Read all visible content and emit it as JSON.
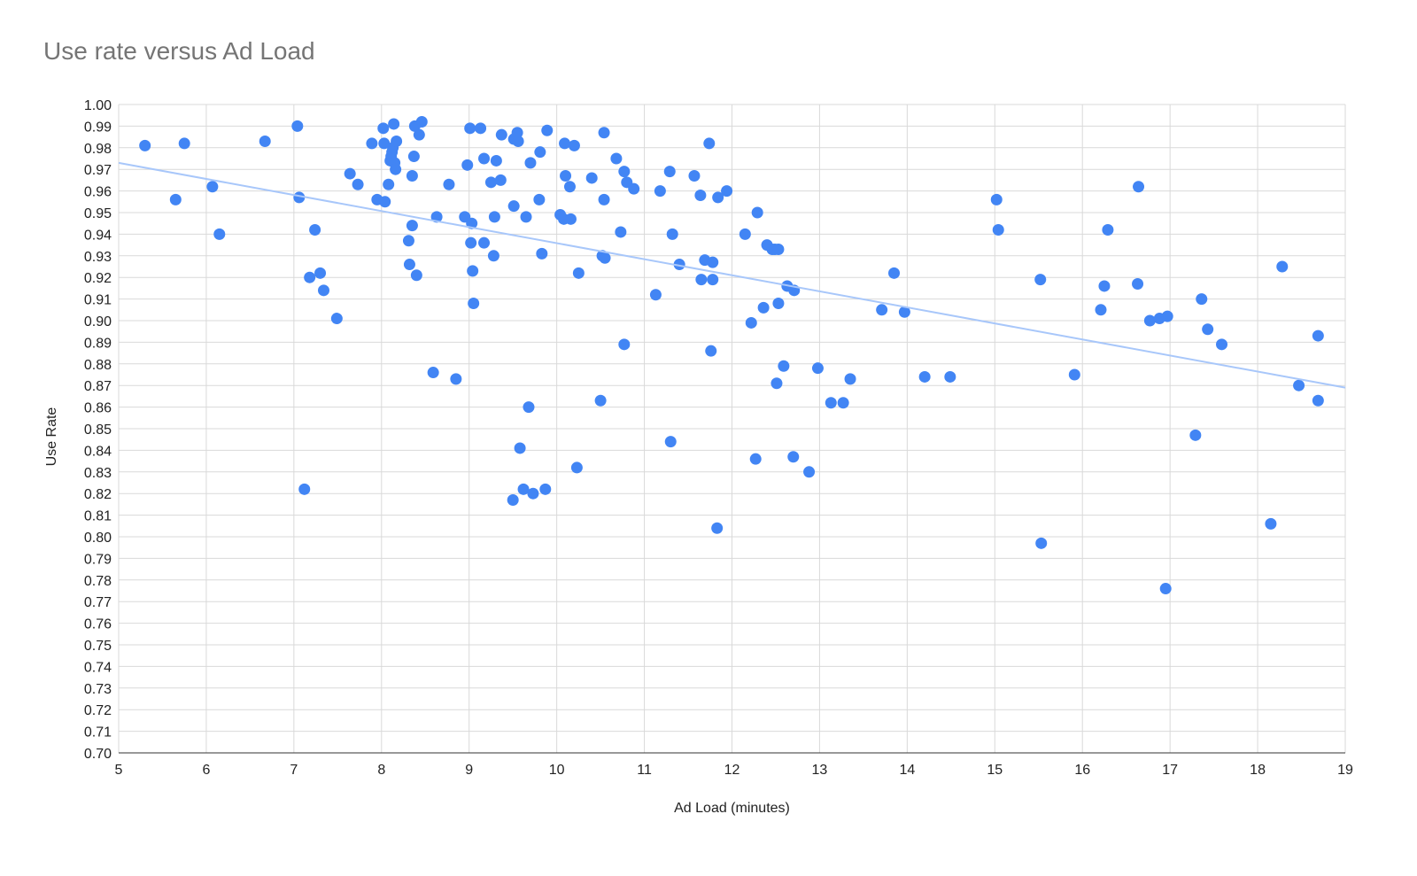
{
  "chart_data": {
    "type": "scatter",
    "title": "Use rate versus Ad Load",
    "xlabel": "Ad Load (minutes)",
    "ylabel": "Use Rate",
    "xlim": [
      5,
      19
    ],
    "ylim": [
      0.7,
      1.0
    ],
    "x_ticks": [
      "5",
      "6",
      "7",
      "8",
      "9",
      "10",
      "11",
      "12",
      "13",
      "14",
      "15",
      "16",
      "17",
      "18",
      "19"
    ],
    "y_ticks": [
      "0.70",
      "0.71",
      "0.72",
      "0.73",
      "0.74",
      "0.75",
      "0.76",
      "0.77",
      "0.78",
      "0.79",
      "0.80",
      "0.81",
      "0.82",
      "0.83",
      "0.84",
      "0.85",
      "0.86",
      "0.87",
      "0.88",
      "0.89",
      "0.90",
      "0.91",
      "0.92",
      "0.93",
      "0.94",
      "0.95",
      "0.96",
      "0.97",
      "0.98",
      "0.99",
      "1.00"
    ],
    "grid": true,
    "legend": "none",
    "colors": {
      "points": "#4285f4",
      "trendline": "#a8c7fa",
      "grid": "#d9d9d9"
    },
    "trendline": {
      "x": [
        5,
        19
      ],
      "y": [
        0.973,
        0.869
      ]
    },
    "points": [
      [
        5.3,
        0.981
      ],
      [
        5.65,
        0.956
      ],
      [
        5.75,
        0.982
      ],
      [
        6.07,
        0.962
      ],
      [
        6.15,
        0.94
      ],
      [
        6.67,
        0.983
      ],
      [
        7.04,
        0.99
      ],
      [
        7.06,
        0.957
      ],
      [
        7.12,
        0.822
      ],
      [
        7.18,
        0.92
      ],
      [
        7.24,
        0.942
      ],
      [
        7.3,
        0.922
      ],
      [
        7.34,
        0.914
      ],
      [
        7.49,
        0.901
      ],
      [
        7.64,
        0.968
      ],
      [
        7.73,
        0.963
      ],
      [
        7.89,
        0.982
      ],
      [
        7.95,
        0.956
      ],
      [
        8.02,
        0.989
      ],
      [
        8.03,
        0.982
      ],
      [
        8.04,
        0.955
      ],
      [
        8.08,
        0.963
      ],
      [
        8.1,
        0.974
      ],
      [
        8.11,
        0.976
      ],
      [
        8.12,
        0.978
      ],
      [
        8.13,
        0.98
      ],
      [
        8.14,
        0.991
      ],
      [
        8.15,
        0.973
      ],
      [
        8.16,
        0.97
      ],
      [
        8.17,
        0.983
      ],
      [
        8.31,
        0.937
      ],
      [
        8.32,
        0.926
      ],
      [
        8.35,
        0.967
      ],
      [
        8.35,
        0.944
      ],
      [
        8.37,
        0.976
      ],
      [
        8.38,
        0.99
      ],
      [
        8.4,
        0.921
      ],
      [
        8.43,
        0.986
      ],
      [
        8.46,
        0.992
      ],
      [
        8.59,
        0.876
      ],
      [
        8.63,
        0.948
      ],
      [
        8.77,
        0.963
      ],
      [
        8.85,
        0.873
      ],
      [
        8.95,
        0.948
      ],
      [
        8.98,
        0.972
      ],
      [
        9.01,
        0.989
      ],
      [
        9.02,
        0.936
      ],
      [
        9.03,
        0.945
      ],
      [
        9.04,
        0.923
      ],
      [
        9.05,
        0.908
      ],
      [
        9.13,
        0.989
      ],
      [
        9.17,
        0.975
      ],
      [
        9.17,
        0.936
      ],
      [
        9.25,
        0.964
      ],
      [
        9.28,
        0.93
      ],
      [
        9.29,
        0.948
      ],
      [
        9.31,
        0.974
      ],
      [
        9.36,
        0.965
      ],
      [
        9.37,
        0.986
      ],
      [
        9.5,
        0.817
      ],
      [
        9.51,
        0.953
      ],
      [
        9.51,
        0.984
      ],
      [
        9.55,
        0.987
      ],
      [
        9.56,
        0.983
      ],
      [
        9.58,
        0.841
      ],
      [
        9.62,
        0.822
      ],
      [
        9.65,
        0.948
      ],
      [
        9.68,
        0.86
      ],
      [
        9.7,
        0.973
      ],
      [
        9.73,
        0.82
      ],
      [
        9.8,
        0.956
      ],
      [
        9.81,
        0.978
      ],
      [
        9.83,
        0.931
      ],
      [
        9.87,
        0.822
      ],
      [
        9.89,
        0.988
      ],
      [
        10.04,
        0.949
      ],
      [
        10.08,
        0.947
      ],
      [
        10.09,
        0.982
      ],
      [
        10.1,
        0.967
      ],
      [
        10.15,
        0.962
      ],
      [
        10.16,
        0.947
      ],
      [
        10.2,
        0.981
      ],
      [
        10.23,
        0.832
      ],
      [
        10.25,
        0.922
      ],
      [
        10.4,
        0.966
      ],
      [
        10.5,
        0.863
      ],
      [
        10.52,
        0.93
      ],
      [
        10.54,
        0.987
      ],
      [
        10.54,
        0.956
      ],
      [
        10.55,
        0.929
      ],
      [
        10.68,
        0.975
      ],
      [
        10.73,
        0.941
      ],
      [
        10.77,
        0.889
      ],
      [
        10.77,
        0.969
      ],
      [
        10.8,
        0.964
      ],
      [
        10.88,
        0.961
      ],
      [
        11.13,
        0.912
      ],
      [
        11.18,
        0.96
      ],
      [
        11.29,
        0.969
      ],
      [
        11.3,
        0.844
      ],
      [
        11.32,
        0.94
      ],
      [
        11.4,
        0.926
      ],
      [
        11.57,
        0.967
      ],
      [
        11.64,
        0.958
      ],
      [
        11.65,
        0.919
      ],
      [
        11.69,
        0.928
      ],
      [
        11.74,
        0.982
      ],
      [
        11.76,
        0.886
      ],
      [
        11.78,
        0.919
      ],
      [
        11.78,
        0.927
      ],
      [
        11.83,
        0.804
      ],
      [
        11.84,
        0.957
      ],
      [
        11.94,
        0.96
      ],
      [
        12.15,
        0.94
      ],
      [
        12.22,
        0.899
      ],
      [
        12.27,
        0.836
      ],
      [
        12.29,
        0.95
      ],
      [
        12.36,
        0.906
      ],
      [
        12.4,
        0.935
      ],
      [
        12.46,
        0.933
      ],
      [
        12.49,
        0.933
      ],
      [
        12.51,
        0.871
      ],
      [
        12.53,
        0.908
      ],
      [
        12.53,
        0.933
      ],
      [
        12.59,
        0.879
      ],
      [
        12.63,
        0.916
      ],
      [
        12.7,
        0.837
      ],
      [
        12.71,
        0.914
      ],
      [
        12.88,
        0.83
      ],
      [
        12.98,
        0.878
      ],
      [
        13.13,
        0.862
      ],
      [
        13.27,
        0.862
      ],
      [
        13.35,
        0.873
      ],
      [
        13.71,
        0.905
      ],
      [
        13.85,
        0.922
      ],
      [
        13.97,
        0.904
      ],
      [
        14.2,
        0.874
      ],
      [
        14.49,
        0.874
      ],
      [
        15.02,
        0.956
      ],
      [
        15.04,
        0.942
      ],
      [
        15.52,
        0.919
      ],
      [
        15.53,
        0.797
      ],
      [
        15.91,
        0.875
      ],
      [
        16.21,
        0.905
      ],
      [
        16.25,
        0.916
      ],
      [
        16.29,
        0.942
      ],
      [
        16.63,
        0.917
      ],
      [
        16.64,
        0.962
      ],
      [
        16.77,
        0.9
      ],
      [
        16.88,
        0.901
      ],
      [
        16.95,
        0.776
      ],
      [
        16.97,
        0.902
      ],
      [
        17.29,
        0.847
      ],
      [
        17.36,
        0.91
      ],
      [
        17.43,
        0.896
      ],
      [
        17.59,
        0.889
      ],
      [
        18.15,
        0.806
      ],
      [
        18.28,
        0.925
      ],
      [
        18.47,
        0.87
      ],
      [
        18.69,
        0.893
      ],
      [
        18.69,
        0.863
      ]
    ]
  }
}
